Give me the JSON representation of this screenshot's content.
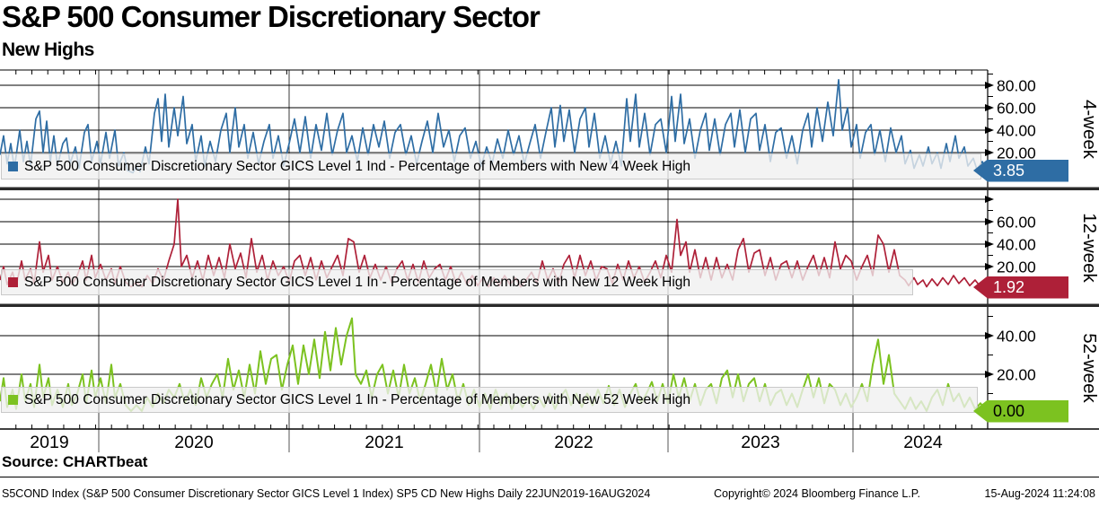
{
  "header": {
    "title": "S&P 500 Consumer Discretionary Sector",
    "subtitle": "New Highs"
  },
  "source_line": "Source: CHARTbeat",
  "footer": {
    "left": "S5COND Index (S&P 500 Consumer Discretionary Sector GICS Level 1 Index) SP5 CD New Highs  Daily 22JUN2019-16AUG2024",
    "center": "Copyright© 2024 Bloomberg Finance L.P.",
    "right": "15-Aug-2024 11:24:08"
  },
  "chart_data": {
    "type": "line",
    "title": "S&P 500 Consumer Discretionary Sector - New Highs",
    "x_domain": [
      "22JUN2019",
      "16AUG2024"
    ],
    "x_tick_years": [
      "2019",
      "2020",
      "2021",
      "2022",
      "2023",
      "2024"
    ],
    "grid": true,
    "legend_position": "inside-lower-left",
    "panels": [
      {
        "name": "4-week",
        "legend": "S&P 500 Consumer Discretionary Sector GICS Level 1 Ind - Percentage of Members with New 4 Week High",
        "color": "#2e6da4",
        "tag_color": "#2e6da4",
        "tag_text_color": "#ffffff",
        "last_value": "3.85",
        "y_ticks": [
          20,
          40,
          60,
          80
        ],
        "y_tick_labels": [
          "20.00",
          "40.00",
          "60.00",
          "80.00"
        ],
        "ylim": [
          0,
          93
        ],
        "points": [
          0,
          18,
          4,
          35,
          8,
          10,
          12,
          28,
          16,
          6,
          22,
          40,
          26,
          12,
          30,
          30,
          34,
          8,
          40,
          50,
          44,
          57,
          48,
          20,
          52,
          48,
          56,
          12,
          60,
          35,
          64,
          8,
          70,
          28,
          74,
          33,
          78,
          10,
          84,
          25,
          88,
          6,
          94,
          38,
          98,
          45,
          102,
          12,
          108,
          30,
          112,
          10,
          118,
          38,
          122,
          15,
          128,
          40,
          132,
          8,
          138,
          20,
          142,
          4,
          148,
          2,
          152,
          8,
          156,
          3,
          162,
          25,
          166,
          10,
          172,
          55,
          176,
          68,
          180,
          30,
          184,
          72,
          188,
          25,
          194,
          60,
          198,
          35,
          204,
          70,
          208,
          28,
          214,
          45,
          218,
          12,
          224,
          35,
          228,
          8,
          234,
          30,
          240,
          12,
          246,
          40,
          252,
          55,
          256,
          20,
          262,
          60,
          266,
          25,
          272,
          45,
          276,
          15,
          282,
          38,
          288,
          10,
          294,
          30,
          300,
          45,
          304,
          15,
          310,
          35,
          316,
          8,
          322,
          28,
          328,
          50,
          334,
          20,
          340,
          52,
          346,
          15,
          352,
          45,
          358,
          22,
          364,
          55,
          370,
          18,
          376,
          40,
          382,
          55,
          386,
          20,
          392,
          35,
          398,
          12,
          404,
          42,
          410,
          18,
          416,
          45,
          422,
          25,
          428,
          48,
          434,
          15,
          440,
          38,
          446,
          45,
          452,
          18,
          458,
          35,
          464,
          10,
          470,
          30,
          476,
          48,
          482,
          20,
          488,
          55,
          494,
          25,
          500,
          40,
          506,
          12,
          512,
          35,
          518,
          42,
          524,
          15,
          530,
          30,
          536,
          8,
          542,
          25,
          548,
          10,
          554,
          32,
          560,
          15,
          566,
          40,
          572,
          18,
          578,
          35,
          584,
          10,
          590,
          28,
          596,
          45,
          602,
          15,
          608,
          38,
          614,
          60,
          618,
          25,
          624,
          62,
          628,
          30,
          634,
          58,
          640,
          20,
          646,
          50,
          652,
          60,
          656,
          25,
          662,
          55,
          668,
          15,
          674,
          35,
          680,
          10,
          686,
          30,
          692,
          8,
          698,
          68,
          702,
          30,
          708,
          72,
          712,
          25,
          718,
          55,
          724,
          18,
          730,
          45,
          736,
          50,
          742,
          20,
          748,
          70,
          752,
          30,
          758,
          72,
          762,
          28,
          768,
          50,
          774,
          15,
          780,
          40,
          786,
          55,
          790,
          22,
          796,
          50,
          802,
          18,
          808,
          45,
          814,
          55,
          818,
          25,
          824,
          58,
          830,
          20,
          836,
          50,
          842,
          55,
          846,
          22,
          852,
          45,
          858,
          12,
          864,
          38,
          870,
          42,
          876,
          15,
          882,
          35,
          888,
          10,
          894,
          40,
          900,
          55,
          904,
          25,
          910,
          60,
          916,
          30,
          922,
          65,
          928,
          35,
          934,
          85,
          938,
          40,
          944,
          60,
          948,
          25,
          954,
          45,
          958,
          15,
          964,
          38,
          970,
          45,
          974,
          18,
          980,
          40,
          986,
          12,
          992,
          42,
          998,
          20,
          1004,
          35,
          1008,
          10,
          1014,
          22,
          1018,
          6,
          1024,
          18,
          1028,
          8,
          1034,
          25,
          1038,
          10,
          1044,
          20,
          1048,
          6,
          1054,
          28,
          1058,
          12,
          1064,
          35,
          1068,
          15,
          1074,
          25,
          1078,
          8,
          1084,
          15,
          1088,
          5,
          1094,
          12,
          1100,
          3.85
        ]
      },
      {
        "name": "12-week",
        "legend": "S&P 500 Consumer Discretionary Sector GICS Level 1 In - Percentage of Members with New 12 Week High",
        "color": "#ae2038",
        "tag_color": "#ae2038",
        "tag_text_color": "#ffffff",
        "last_value": "1.92",
        "y_ticks": [
          20,
          40,
          60,
          80
        ],
        "y_tick_labels": [
          "20.00",
          "40.00",
          "60.00",
          ""
        ],
        "ylim": [
          0,
          86
        ],
        "points": [
          0,
          8,
          4,
          20,
          8,
          4,
          14,
          15,
          18,
          3,
          24,
          25,
          28,
          8,
          34,
          18,
          38,
          5,
          44,
          42,
          48,
          15,
          54,
          30,
          58,
          8,
          64,
          20,
          70,
          6,
          76,
          15,
          80,
          4,
          86,
          12,
          92,
          25,
          96,
          8,
          102,
          30,
          106,
          10,
          112,
          22,
          118,
          8,
          124,
          18,
          128,
          5,
          134,
          20,
          140,
          6,
          146,
          2,
          152,
          6,
          158,
          2,
          164,
          12,
          170,
          5,
          176,
          18,
          182,
          8,
          188,
          25,
          194,
          40,
          198,
          80,
          202,
          20,
          208,
          30,
          214,
          10,
          220,
          25,
          226,
          8,
          232,
          30,
          238,
          12,
          244,
          28,
          250,
          10,
          256,
          40,
          262,
          18,
          268,
          32,
          274,
          10,
          280,
          45,
          286,
          15,
          292,
          30,
          298,
          8,
          304,
          25,
          310,
          12,
          316,
          20,
          322,
          6,
          328,
          25,
          334,
          30,
          340,
          12,
          346,
          28,
          352,
          8,
          358,
          25,
          364,
          10,
          370,
          20,
          376,
          30,
          382,
          12,
          388,
          45,
          394,
          42,
          400,
          15,
          406,
          30,
          412,
          10,
          418,
          22,
          424,
          8,
          430,
          20,
          436,
          6,
          442,
          18,
          448,
          25,
          454,
          8,
          460,
          22,
          466,
          6,
          472,
          25,
          478,
          10,
          484,
          18,
          490,
          22,
          496,
          8,
          502,
          20,
          508,
          5,
          514,
          15,
          520,
          4,
          526,
          12,
          532,
          3,
          538,
          10,
          544,
          2,
          550,
          10,
          556,
          3,
          562,
          12,
          568,
          4,
          574,
          10,
          580,
          2,
          586,
          8,
          592,
          15,
          598,
          5,
          604,
          25,
          610,
          8,
          616,
          18,
          622,
          5,
          628,
          22,
          634,
          30,
          640,
          10,
          646,
          30,
          652,
          12,
          658,
          25,
          664,
          8,
          670,
          20,
          676,
          18,
          682,
          5,
          688,
          22,
          694,
          8,
          700,
          25,
          706,
          10,
          712,
          20,
          718,
          6,
          724,
          15,
          730,
          25,
          736,
          10,
          742,
          30,
          748,
          15,
          754,
          62,
          758,
          30,
          764,
          42,
          768,
          15,
          774,
          35,
          780,
          10,
          786,
          28,
          792,
          8,
          798,
          28,
          804,
          10,
          810,
          22,
          816,
          8,
          822,
          35,
          828,
          45,
          834,
          15,
          840,
          32,
          846,
          35,
          852,
          12,
          858,
          28,
          864,
          8,
          870,
          22,
          876,
          25,
          882,
          10,
          888,
          25,
          894,
          8,
          900,
          20,
          906,
          30,
          912,
          12,
          918,
          28,
          924,
          10,
          930,
          42,
          936,
          18,
          942,
          30,
          948,
          25,
          954,
          8,
          960,
          20,
          966,
          30,
          972,
          12,
          978,
          48,
          984,
          40,
          990,
          15,
          996,
          35,
          1002,
          12,
          1008,
          8,
          1012,
          3,
          1018,
          10,
          1022,
          4,
          1028,
          8,
          1032,
          2,
          1038,
          9,
          1044,
          3,
          1050,
          10,
          1056,
          4,
          1062,
          12,
          1068,
          5,
          1074,
          10,
          1080,
          3,
          1086,
          8,
          1092,
          2,
          1100,
          1.92
        ]
      },
      {
        "name": "52-week",
        "legend": "S&P 500 Consumer Discretionary Sector GICS Level 1 In - Percentage of Members with New 52 Week High",
        "color": "#7cc220",
        "tag_color": "#7cc220",
        "tag_text_color": "#000000",
        "last_value": "0.00",
        "y_ticks": [
          20,
          40
        ],
        "y_tick_labels": [
          "20.00",
          "40.00"
        ],
        "ylim": [
          0,
          54
        ],
        "points": [
          0,
          6,
          4,
          18,
          8,
          3,
          14,
          12,
          18,
          2,
          24,
          20,
          28,
          6,
          34,
          15,
          38,
          3,
          44,
          25,
          48,
          8,
          54,
          18,
          58,
          4,
          64,
          12,
          70,
          3,
          76,
          15,
          80,
          4,
          86,
          10,
          92,
          20,
          96,
          5,
          102,
          22,
          106,
          8,
          112,
          18,
          118,
          5,
          124,
          25,
          128,
          8,
          134,
          15,
          140,
          4,
          146,
          1,
          152,
          4,
          158,
          1,
          164,
          8,
          170,
          3,
          176,
          10,
          182,
          5,
          188,
          12,
          194,
          8,
          200,
          15,
          206,
          5,
          212,
          12,
          218,
          4,
          224,
          18,
          230,
          8,
          236,
          15,
          242,
          20,
          248,
          8,
          254,
          28,
          260,
          12,
          266,
          22,
          272,
          8,
          278,
          25,
          284,
          10,
          290,
          32,
          296,
          15,
          302,
          28,
          308,
          30,
          314,
          12,
          320,
          25,
          326,
          35,
          332,
          15,
          338,
          35,
          344,
          20,
          350,
          38,
          356,
          18,
          362,
          42,
          368,
          22,
          374,
          44,
          380,
          25,
          386,
          40,
          392,
          49,
          396,
          20,
          402,
          15,
          408,
          22,
          414,
          8,
          420,
          20,
          426,
          25,
          432,
          10,
          438,
          22,
          444,
          8,
          450,
          25,
          456,
          10,
          462,
          18,
          468,
          6,
          474,
          15,
          480,
          25,
          486,
          10,
          492,
          28,
          498,
          12,
          504,
          20,
          510,
          6,
          516,
          15,
          522,
          4,
          528,
          12,
          534,
          3,
          540,
          10,
          546,
          2,
          552,
          12,
          558,
          4,
          564,
          10,
          570,
          2,
          576,
          8,
          582,
          3,
          588,
          8,
          594,
          2,
          600,
          8,
          606,
          3,
          612,
          10,
          618,
          2,
          624,
          8,
          630,
          12,
          636,
          4,
          642,
          10,
          648,
          3,
          654,
          10,
          660,
          4,
          666,
          12,
          672,
          5,
          678,
          14,
          684,
          4,
          690,
          12,
          696,
          3,
          702,
          10,
          708,
          15,
          714,
          5,
          720,
          10,
          726,
          16,
          732,
          6,
          738,
          15,
          744,
          5,
          750,
          20,
          756,
          8,
          762,
          18,
          768,
          6,
          774,
          15,
          780,
          4,
          786,
          12,
          792,
          15,
          798,
          5,
          804,
          18,
          810,
          22,
          816,
          8,
          822,
          20,
          828,
          6,
          834,
          15,
          840,
          18,
          846,
          6,
          852,
          15,
          858,
          4,
          864,
          10,
          870,
          12,
          876,
          4,
          882,
          10,
          888,
          3,
          894,
          12,
          900,
          20,
          906,
          8,
          912,
          18,
          918,
          5,
          924,
          15,
          930,
          12,
          936,
          4,
          942,
          10,
          948,
          3,
          954,
          8,
          960,
          15,
          966,
          6,
          972,
          25,
          978,
          38,
          984,
          15,
          990,
          30,
          996,
          10,
          1002,
          6,
          1008,
          2,
          1014,
          8,
          1020,
          2,
          1026,
          6,
          1032,
          1,
          1038,
          8,
          1044,
          12,
          1050,
          4,
          1056,
          15,
          1062,
          6,
          1068,
          10,
          1074,
          3,
          1080,
          8,
          1086,
          2,
          1092,
          5,
          1100,
          0
        ]
      }
    ]
  }
}
